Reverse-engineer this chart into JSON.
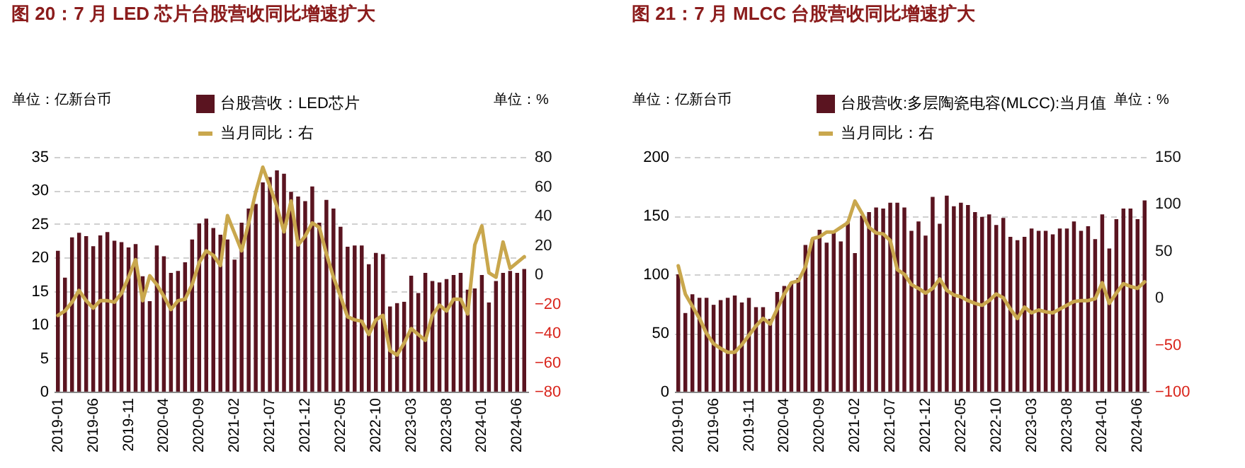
{
  "chart_data": [
    {
      "type": "bar",
      "title": "图 20：7 月 LED 芯片台股营收同比增速扩大",
      "ylabel": "单位：亿新台币",
      "y2label": "单位：%",
      "categories": [
        "2019-01",
        null,
        null,
        null,
        null,
        "2019-06",
        null,
        null,
        null,
        null,
        "2019-11",
        null,
        null,
        null,
        null,
        "2020-04",
        null,
        null,
        null,
        null,
        "2020-09",
        null,
        null,
        null,
        null,
        "2021-02",
        null,
        null,
        null,
        null,
        "2021-07",
        null,
        null,
        null,
        null,
        "2021-12",
        null,
        null,
        null,
        null,
        "2022-05",
        null,
        null,
        null,
        null,
        "2022-10",
        null,
        null,
        null,
        null,
        "2023-03",
        null,
        null,
        null,
        null,
        "2023-08",
        null,
        null,
        null,
        null,
        "2024-01",
        null,
        null,
        null,
        null,
        "2024-06",
        null
      ],
      "series": [
        {
          "name": "台股营收：LED芯片",
          "color": "#5a1420",
          "values": [
            21,
            17,
            23,
            23.7,
            23.2,
            21.7,
            23.3,
            23.8,
            22.5,
            22.3,
            21.5,
            22,
            17.2,
            13.5,
            21.8,
            20.2,
            17.7,
            18,
            19.3,
            22.7,
            25.1,
            25.8,
            24.4,
            23.4,
            22.7,
            19.7,
            25.2,
            27.3,
            28,
            31.2,
            32,
            33,
            32.5,
            29.8,
            29.1,
            28.4,
            30.6,
            25.2,
            28.6,
            27.3,
            24.6,
            21.6,
            21.8,
            21.8,
            19,
            20.7,
            20.5,
            12.7,
            13.2,
            13.4,
            17.3,
            14.7,
            17.7,
            16.5,
            16.3,
            16.8,
            17.4,
            17.7,
            15.2,
            15.4,
            17.4,
            13.3,
            16.5,
            17.7,
            18,
            17.7,
            18.3
          ]
        },
        {
          "name": "当月同比：右",
          "type": "line",
          "axis": "y2",
          "color": "#c9a74d",
          "values": [
            -28,
            -25,
            -19,
            -11,
            -18,
            -23,
            -18,
            -18,
            -19,
            -13,
            -2,
            10,
            -18,
            -1,
            -7,
            -15,
            -24,
            -18,
            -17,
            -7,
            8,
            16,
            13,
            6,
            40,
            28,
            16,
            35,
            56,
            73,
            60,
            46,
            29,
            50,
            20,
            26,
            35,
            32,
            14,
            -2,
            -15,
            -29,
            -31,
            -32,
            -41,
            -31,
            -28,
            -52,
            -55,
            -47,
            -37,
            -41,
            -45,
            -28,
            -21,
            -25,
            -17,
            -17,
            -27,
            20,
            33,
            1,
            -2,
            22,
            4,
            8,
            12
          ]
        }
      ],
      "ylim": [
        0,
        35
      ],
      "yticks": [
        0,
        5,
        10,
        15,
        20,
        25,
        30,
        35
      ],
      "y2lim": [
        -80,
        80
      ],
      "y2ticks": [
        -80,
        -60,
        -40,
        -20,
        0,
        20,
        40,
        60,
        80
      ],
      "grid": "y",
      "legend": "top"
    },
    {
      "type": "bar",
      "title": "图 21：7 月 MLCC 台股营收同比增速扩大",
      "ylabel": "单位：亿新台币",
      "y2label": "单位：%",
      "categories": [
        "2019-01",
        null,
        null,
        null,
        null,
        "2019-06",
        null,
        null,
        null,
        null,
        "2019-11",
        null,
        null,
        null,
        null,
        "2020-04",
        null,
        null,
        null,
        null,
        "2020-09",
        null,
        null,
        null,
        null,
        "2021-02",
        null,
        null,
        null,
        null,
        "2021-07",
        null,
        null,
        null,
        null,
        "2021-12",
        null,
        null,
        null,
        null,
        "2022-05",
        null,
        null,
        null,
        null,
        "2022-10",
        null,
        null,
        null,
        null,
        "2023-03",
        null,
        null,
        null,
        null,
        "2023-08",
        null,
        null,
        null,
        null,
        "2024-01",
        null,
        null,
        null,
        null,
        "2024-06",
        null
      ],
      "series": [
        {
          "name": "台股营收:多层陶瓷电容(MLCC):当月值",
          "color": "#5a1420",
          "values": [
            100,
            67,
            83,
            80,
            80,
            74,
            78,
            80,
            82,
            76,
            80,
            72,
            72,
            62,
            85,
            90,
            93,
            97,
            125,
            130,
            138,
            127,
            136,
            128,
            145,
            118,
            150,
            153,
            157,
            156,
            161,
            161,
            157,
            137,
            145,
            133,
            166,
            143,
            167,
            158,
            161,
            159,
            153,
            149,
            151,
            142,
            148,
            132,
            129,
            132,
            139,
            137,
            137,
            134,
            139,
            139,
            145,
            137,
            141,
            130,
            151,
            122,
            147,
            156,
            156,
            147,
            163
          ]
        },
        {
          "name": "当月同比：右",
          "type": "line",
          "axis": "y2",
          "color": "#c9a74d",
          "values": [
            34,
            4,
            -9,
            -22,
            -38,
            -49,
            -54,
            -58,
            -58,
            -50,
            -40,
            -30,
            -22,
            -28,
            -12,
            4,
            16,
            18,
            33,
            63,
            65,
            70,
            70,
            75,
            80,
            103,
            90,
            75,
            69,
            68,
            61,
            30,
            25,
            14,
            10,
            5,
            10,
            20,
            8,
            3,
            1,
            -3,
            -6,
            -8,
            -3,
            4,
            0,
            -12,
            -22,
            -10,
            -16,
            -13,
            -15,
            -16,
            -12,
            -8,
            -4,
            -3,
            -3,
            -1,
            16,
            -6,
            5,
            15,
            12,
            10,
            17
          ]
        }
      ],
      "ylim": [
        0,
        200
      ],
      "yticks": [
        0,
        50,
        100,
        150,
        200
      ],
      "y2lim": [
        -100,
        150
      ],
      "y2ticks": [
        -100,
        -50,
        0,
        50,
        100,
        150
      ],
      "grid": "y",
      "legend": "top"
    }
  ]
}
